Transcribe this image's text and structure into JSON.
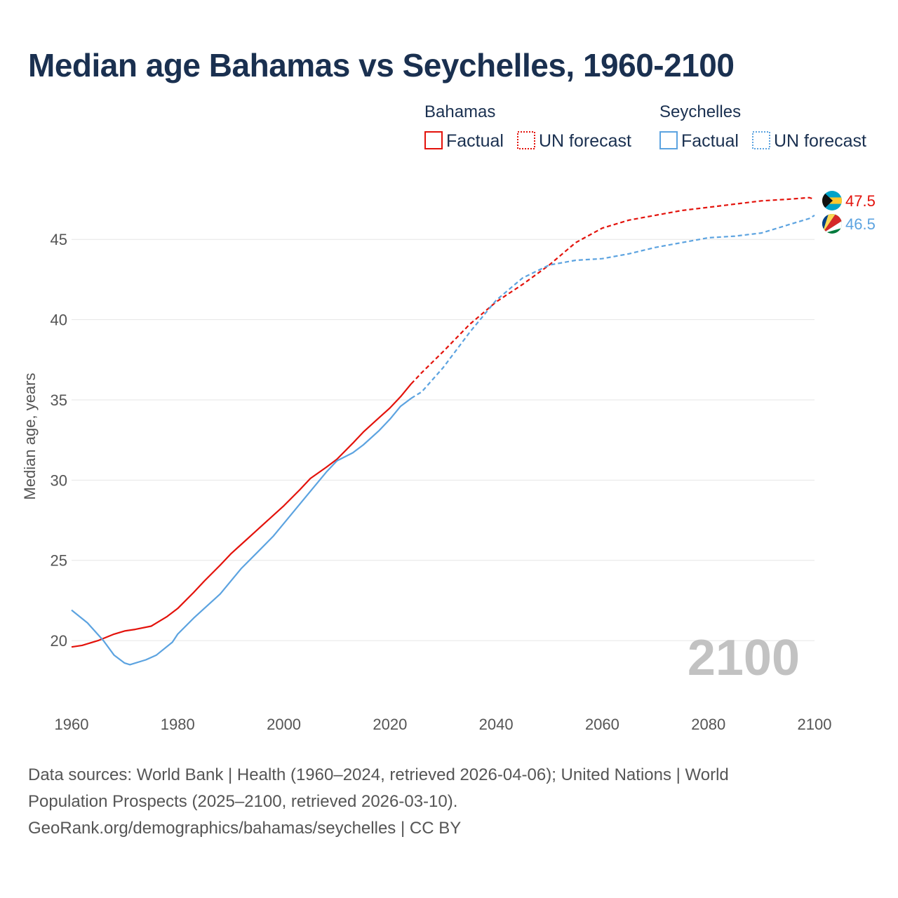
{
  "title": "Median age Bahamas vs Seychelles, 1960-2100",
  "legend": {
    "groups": [
      {
        "name": "Bahamas",
        "color": "#e3120b",
        "items": [
          "Factual",
          "UN forecast"
        ]
      },
      {
        "name": "Seychelles",
        "color": "#5ca3e0",
        "items": [
          "Factual",
          "UN forecast"
        ]
      }
    ]
  },
  "footer": {
    "line1": "Data sources: World Bank | Health (1960–2024, retrieved 2026-04-06); United Nations | World",
    "line2": "Population Prospects (2025–2100, retrieved 2026-03-10).",
    "line3": "GeoRank.org/demographics/bahamas/seychelles | CC BY"
  },
  "chart_data": {
    "type": "line",
    "title": "Median age Bahamas vs Seychelles, 1960-2100",
    "xlabel": "",
    "ylabel": "Median age, years",
    "xlim": [
      1960,
      2100
    ],
    "ylim": [
      16.2,
      49.6
    ],
    "x_ticks": [
      1960,
      1980,
      2000,
      2020,
      2040,
      2060,
      2080,
      2100
    ],
    "y_ticks": [
      20,
      25,
      30,
      35,
      40,
      45
    ],
    "grid": true,
    "current_year_label": "2100",
    "factual_range": [
      1960,
      2024
    ],
    "forecast_range": [
      2024,
      2100
    ],
    "series": [
      {
        "name": "Bahamas",
        "color": "#e3120b",
        "end_label": "47.5",
        "points": [
          [
            1960,
            19.6
          ],
          [
            1962,
            19.7
          ],
          [
            1965,
            20.0
          ],
          [
            1968,
            20.4
          ],
          [
            1970,
            20.6
          ],
          [
            1972,
            20.7
          ],
          [
            1975,
            20.9
          ],
          [
            1978,
            21.5
          ],
          [
            1980,
            22.0
          ],
          [
            1983,
            23.0
          ],
          [
            1985,
            23.7
          ],
          [
            1988,
            24.7
          ],
          [
            1990,
            25.4
          ],
          [
            1993,
            26.3
          ],
          [
            1995,
            26.9
          ],
          [
            1998,
            27.8
          ],
          [
            2000,
            28.4
          ],
          [
            2003,
            29.4
          ],
          [
            2005,
            30.1
          ],
          [
            2008,
            30.8
          ],
          [
            2010,
            31.3
          ],
          [
            2013,
            32.3
          ],
          [
            2015,
            33.0
          ],
          [
            2018,
            33.9
          ],
          [
            2020,
            34.5
          ],
          [
            2022,
            35.2
          ],
          [
            2024,
            36.0
          ],
          [
            2026,
            36.7
          ],
          [
            2030,
            38.0
          ],
          [
            2035,
            39.7
          ],
          [
            2040,
            41.1
          ],
          [
            2045,
            42.2
          ],
          [
            2050,
            43.4
          ],
          [
            2055,
            44.8
          ],
          [
            2060,
            45.7
          ],
          [
            2065,
            46.2
          ],
          [
            2070,
            46.5
          ],
          [
            2075,
            46.8
          ],
          [
            2080,
            47.0
          ],
          [
            2085,
            47.2
          ],
          [
            2090,
            47.4
          ],
          [
            2095,
            47.5
          ],
          [
            2099,
            47.6
          ],
          [
            2100,
            47.5
          ]
        ]
      },
      {
        "name": "Seychelles",
        "color": "#5ca3e0",
        "end_label": "46.5",
        "points": [
          [
            1960,
            21.9
          ],
          [
            1963,
            21.1
          ],
          [
            1966,
            20.0
          ],
          [
            1968,
            19.1
          ],
          [
            1970,
            18.6
          ],
          [
            1971,
            18.5
          ],
          [
            1974,
            18.8
          ],
          [
            1976,
            19.1
          ],
          [
            1979,
            19.9
          ],
          [
            1980,
            20.4
          ],
          [
            1983,
            21.4
          ],
          [
            1985,
            22.0
          ],
          [
            1988,
            22.9
          ],
          [
            1990,
            23.7
          ],
          [
            1992,
            24.5
          ],
          [
            1995,
            25.5
          ],
          [
            1998,
            26.5
          ],
          [
            2000,
            27.3
          ],
          [
            2003,
            28.5
          ],
          [
            2005,
            29.3
          ],
          [
            2008,
            30.5
          ],
          [
            2010,
            31.2
          ],
          [
            2013,
            31.7
          ],
          [
            2015,
            32.2
          ],
          [
            2018,
            33.1
          ],
          [
            2020,
            33.8
          ],
          [
            2022,
            34.6
          ],
          [
            2024,
            35.1
          ],
          [
            2026,
            35.5
          ],
          [
            2030,
            37.0
          ],
          [
            2035,
            39.2
          ],
          [
            2040,
            41.2
          ],
          [
            2045,
            42.6
          ],
          [
            2050,
            43.4
          ],
          [
            2055,
            43.7
          ],
          [
            2060,
            43.8
          ],
          [
            2065,
            44.1
          ],
          [
            2070,
            44.5
          ],
          [
            2075,
            44.8
          ],
          [
            2080,
            45.1
          ],
          [
            2085,
            45.2
          ],
          [
            2090,
            45.4
          ],
          [
            2095,
            45.9
          ],
          [
            2099,
            46.3
          ],
          [
            2100,
            46.5
          ]
        ]
      }
    ]
  }
}
